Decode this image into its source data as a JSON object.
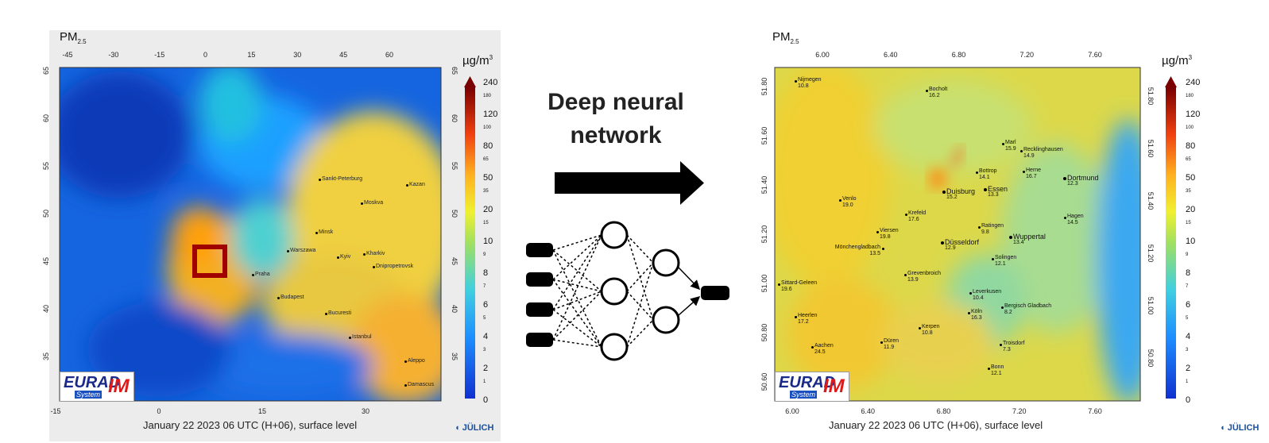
{
  "left_map": {
    "title": "PM",
    "title_sub": "2.5",
    "unit": "µg/m",
    "unit_sup": "3",
    "top_ticks": [
      "-45",
      "-30",
      "-15",
      "0",
      "15",
      "30",
      "45",
      "60"
    ],
    "bottom_ticks": [
      "-15",
      "0",
      "15",
      "30"
    ],
    "left_ticks": [
      "65",
      "60",
      "55",
      "50",
      "45",
      "40",
      "35"
    ],
    "right_ticks": [
      "65",
      "60",
      "55",
      "50",
      "45",
      "40",
      "35"
    ],
    "colorbar_labels": [
      "240",
      "180",
      "120",
      "100",
      "80",
      "65",
      "50",
      "35",
      "20",
      "15",
      "10",
      "9",
      "8",
      "7",
      "6",
      "5",
      "4",
      "3",
      "2",
      "1",
      "0"
    ],
    "cities": [
      "Sankt-Peterburg",
      "Moskva",
      "Kazan",
      "Minsk",
      "Warszawa",
      "Kyiv",
      "Kharkiv",
      "Dnipropetrovsk",
      "Praha",
      "Budapest",
      "Bucuresti",
      "Istanbul",
      "Aleppo",
      "Damascus"
    ],
    "caption": "January 22 2023 06 UTC (H+06), surface level",
    "logo_main": "EURAD",
    "logo_im": "IM",
    "logo_system": "System",
    "brand": "JÜLICH"
  },
  "middle": {
    "title_line1": "Deep neural",
    "title_line2": "network"
  },
  "right_map": {
    "title": "PM",
    "title_sub": "2.5",
    "unit": "µg/m",
    "unit_sup": "3",
    "top_ticks": [
      "6.00",
      "6.40",
      "6.80",
      "7.20",
      "7.60"
    ],
    "bottom_ticks": [
      "6.00",
      "6.40",
      "6.80",
      "7.20",
      "7.60"
    ],
    "left_ticks": [
      "51.80",
      "51.60",
      "51.40",
      "51.20",
      "51.00",
      "50.80",
      "50.60"
    ],
    "right_ticks": [
      "51.80",
      "51.60",
      "51.40",
      "51.20",
      "51.00",
      "50.80"
    ],
    "colorbar_labels": [
      "240",
      "180",
      "120",
      "100",
      "80",
      "65",
      "50",
      "35",
      "20",
      "15",
      "10",
      "9",
      "8",
      "7",
      "6",
      "5",
      "4",
      "3",
      "2",
      "1",
      "0"
    ],
    "cities": [
      {
        "name": "Nijmegen",
        "value": "10.8"
      },
      {
        "name": "Bocholt",
        "value": "16.2"
      },
      {
        "name": "Marl",
        "value": "15.9"
      },
      {
        "name": "Recklinghausen",
        "value": "14.9"
      },
      {
        "name": "Bottrop",
        "value": "14.1"
      },
      {
        "name": "Herne",
        "value": "16.7"
      },
      {
        "name": "Dortmund",
        "value": "12.3"
      },
      {
        "name": "Venlo",
        "value": "19.0"
      },
      {
        "name": "Duisburg",
        "value": "15.2"
      },
      {
        "name": "Essen",
        "value": "13.3"
      },
      {
        "name": "Krefeld",
        "value": "17.6"
      },
      {
        "name": "Hagen",
        "value": "14.5"
      },
      {
        "name": "Viersen",
        "value": "19.8"
      },
      {
        "name": "Ratingen",
        "value": "9.8"
      },
      {
        "name": "Düsseldorf",
        "value": "12.9"
      },
      {
        "name": "Wuppertal",
        "value": "13.4"
      },
      {
        "name": "Mönchengladbach",
        "value": "13.5"
      },
      {
        "name": "Solingen",
        "value": "12.1"
      },
      {
        "name": "Sittard-Geleen",
        "value": "19.6"
      },
      {
        "name": "Grevenbroich",
        "value": "13.9"
      },
      {
        "name": "Leverkusen",
        "value": "10.4"
      },
      {
        "name": "Bergisch Gladbach",
        "value": "8.2"
      },
      {
        "name": "Köln",
        "value": "16.3"
      },
      {
        "name": "Heerlen",
        "value": "17.2"
      },
      {
        "name": "Kerpen",
        "value": "10.8"
      },
      {
        "name": "Düren",
        "value": "11.9"
      },
      {
        "name": "Troisdorf",
        "value": "7.3"
      },
      {
        "name": "Aachen",
        "value": "24.5"
      },
      {
        "name": "Bonn",
        "value": "12.1"
      }
    ],
    "caption": "January 22 2023 06 UTC (H+06), surface level",
    "logo_main": "EURAD",
    "logo_im": "IM",
    "logo_system": "System",
    "brand": "JÜLICH"
  }
}
